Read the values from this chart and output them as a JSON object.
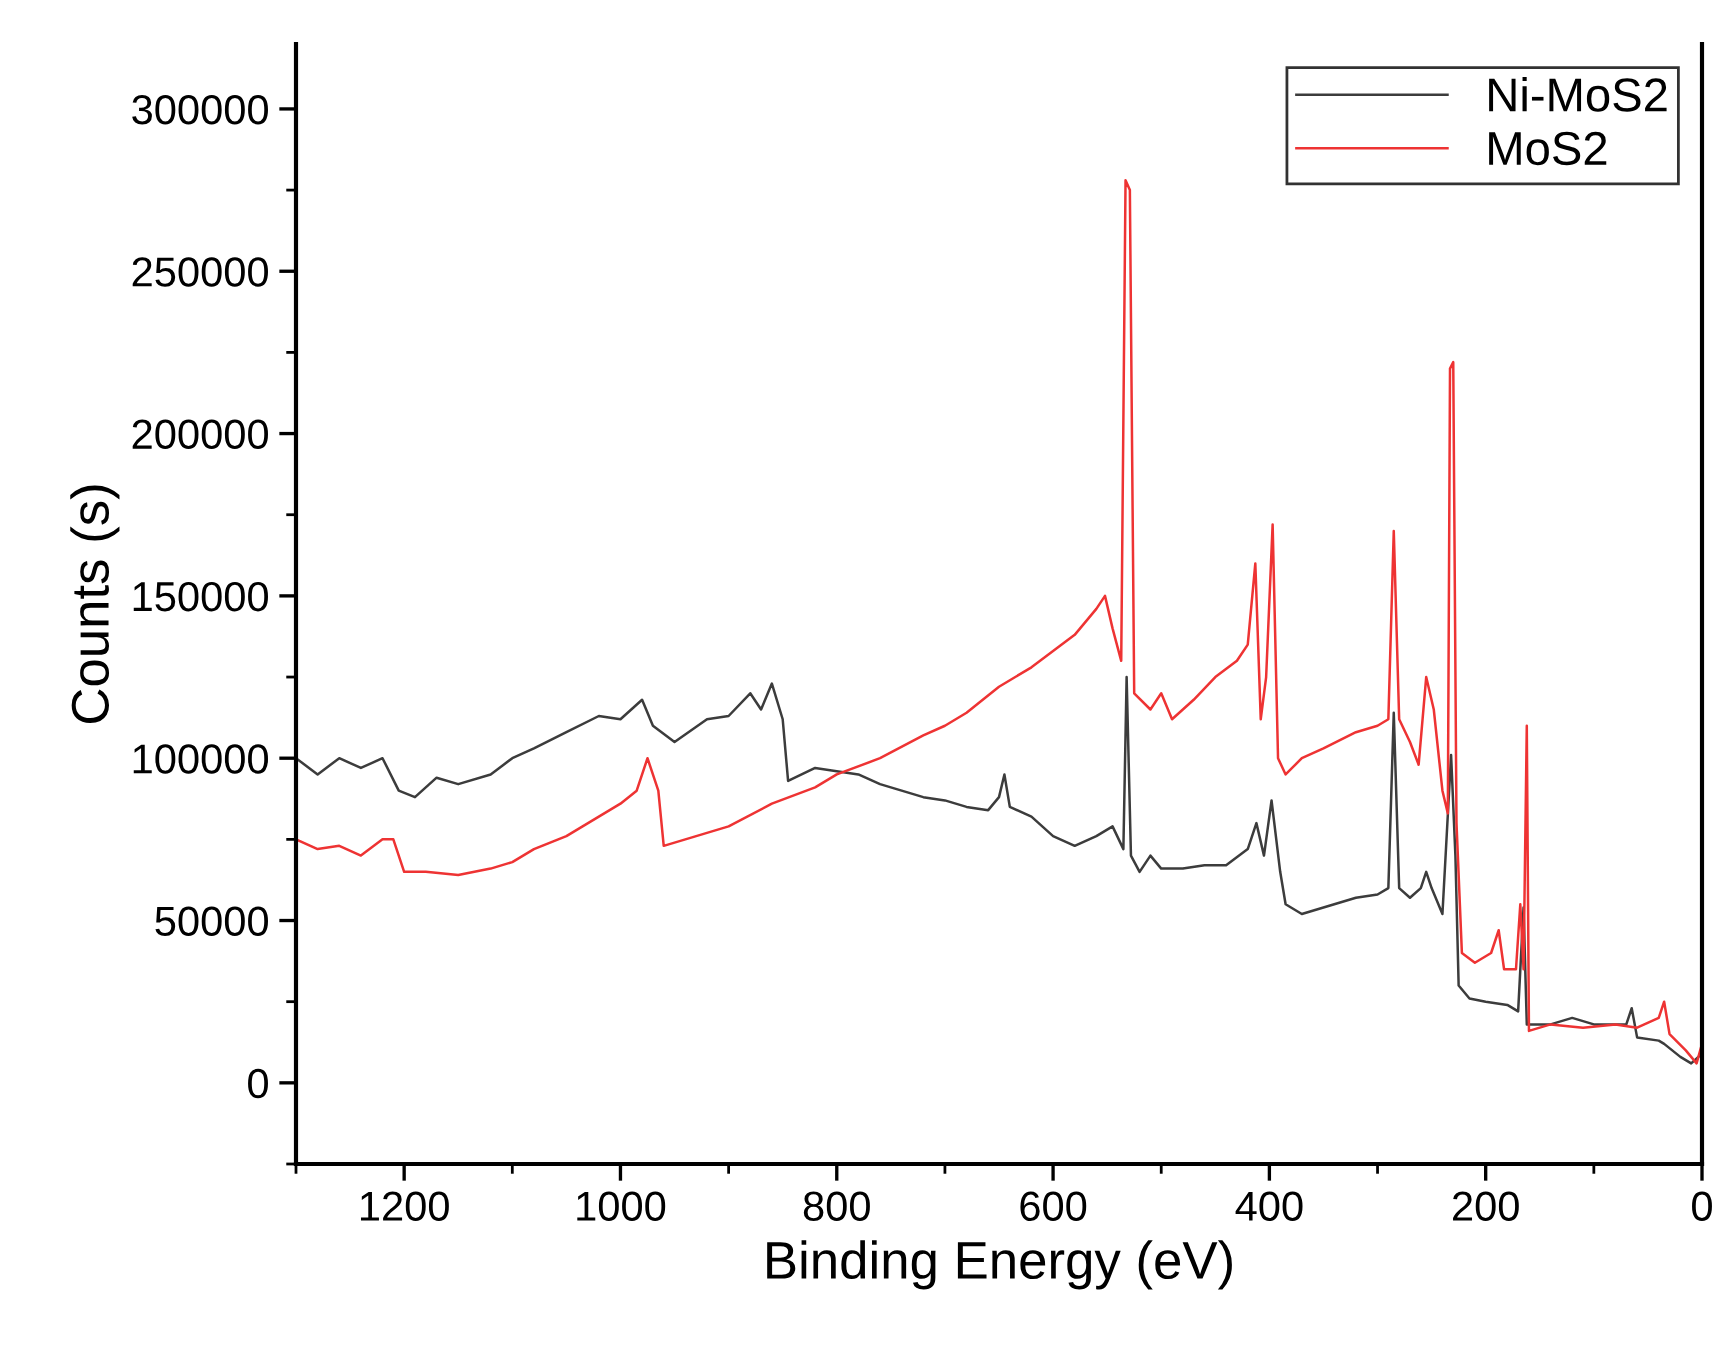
{
  "chart_data": {
    "type": "line",
    "xlabel": "Binding Energy (eV)",
    "ylabel": "Counts (s)",
    "xlim": [
      1300,
      0
    ],
    "ylim": [
      -25000,
      320000
    ],
    "xticks": [
      1200,
      1000,
      800,
      600,
      400,
      200,
      0
    ],
    "yticks": [
      0,
      50000,
      100000,
      150000,
      200000,
      250000,
      300000
    ],
    "grid": false,
    "legend": "top right",
    "marker": "none",
    "line_style": "solid",
    "series": [
      {
        "name": "Ni-MoS2",
        "color": "#3c3c3c",
        "x": [
          1300,
          1280,
          1260,
          1240,
          1220,
          1205,
          1190,
          1170,
          1150,
          1120,
          1100,
          1080,
          1050,
          1020,
          1000,
          980,
          970,
          950,
          920,
          900,
          880,
          870,
          860,
          850,
          845,
          820,
          800,
          780,
          760,
          740,
          720,
          700,
          680,
          660,
          650,
          645,
          640,
          620,
          600,
          580,
          560,
          545,
          535,
          532,
          528,
          520,
          510,
          500,
          480,
          460,
          440,
          420,
          412,
          405,
          398,
          390,
          385,
          370,
          350,
          320,
          300,
          290,
          285,
          280,
          270,
          260,
          255,
          250,
          240,
          232,
          228,
          225,
          215,
          200,
          180,
          170,
          165,
          162,
          140,
          120,
          100,
          80,
          70,
          65,
          60,
          40,
          35,
          20,
          10,
          0
        ],
        "values": [
          100000,
          95000,
          100000,
          97000,
          100000,
          90000,
          88000,
          94000,
          92000,
          95000,
          100000,
          103000,
          108000,
          113000,
          112000,
          118000,
          110000,
          105000,
          112000,
          113000,
          120000,
          115000,
          123000,
          112000,
          93000,
          97000,
          96000,
          95000,
          92000,
          90000,
          88000,
          87000,
          85000,
          84000,
          88000,
          95000,
          85000,
          82000,
          76000,
          73000,
          76000,
          79000,
          72000,
          125000,
          70000,
          65000,
          70000,
          66000,
          66000,
          67000,
          67000,
          72000,
          80000,
          70000,
          87000,
          65000,
          55000,
          52000,
          54000,
          57000,
          58000,
          60000,
          114000,
          60000,
          57000,
          60000,
          65000,
          60000,
          52000,
          101000,
          70000,
          30000,
          26000,
          25000,
          24000,
          22000,
          54000,
          18000,
          18000,
          20000,
          18000,
          18000,
          18000,
          23000,
          14000,
          13000,
          12000,
          8000,
          6000,
          9000
        ]
      },
      {
        "name": "MoS2",
        "color": "#ee3333",
        "x": [
          1300,
          1280,
          1260,
          1240,
          1220,
          1210,
          1200,
          1180,
          1150,
          1120,
          1100,
          1080,
          1050,
          1020,
          1000,
          985,
          975,
          965,
          960,
          940,
          900,
          860,
          820,
          800,
          760,
          720,
          700,
          680,
          650,
          620,
          600,
          580,
          560,
          552,
          545,
          537,
          533,
          529,
          525,
          510,
          500,
          490,
          470,
          450,
          430,
          420,
          413,
          408,
          403,
          397,
          392,
          385,
          370,
          350,
          320,
          300,
          290,
          285,
          280,
          270,
          262,
          255,
          248,
          240,
          235,
          233,
          230,
          227,
          222,
          210,
          195,
          188,
          183,
          172,
          168,
          165,
          162,
          160,
          140,
          110,
          80,
          60,
          40,
          35,
          30,
          15,
          5,
          0
        ],
        "values": [
          75000,
          72000,
          73000,
          70000,
          75000,
          75000,
          65000,
          65000,
          64000,
          66000,
          68000,
          72000,
          76000,
          82000,
          86000,
          90000,
          100000,
          90000,
          73000,
          75000,
          79000,
          86000,
          91000,
          95000,
          100000,
          107000,
          110000,
          114000,
          122000,
          128000,
          133000,
          138000,
          146000,
          150000,
          140000,
          130000,
          278000,
          275000,
          120000,
          115000,
          120000,
          112000,
          118000,
          125000,
          130000,
          135000,
          160000,
          112000,
          125000,
          172000,
          100000,
          95000,
          100000,
          103000,
          108000,
          110000,
          112000,
          170000,
          112000,
          105000,
          98000,
          125000,
          115000,
          90000,
          83000,
          220000,
          222000,
          80000,
          40000,
          37000,
          40000,
          47000,
          35000,
          35000,
          55000,
          35000,
          110000,
          16000,
          18000,
          17000,
          18000,
          17000,
          20000,
          25000,
          15000,
          10000,
          6000,
          12000
        ]
      }
    ]
  }
}
